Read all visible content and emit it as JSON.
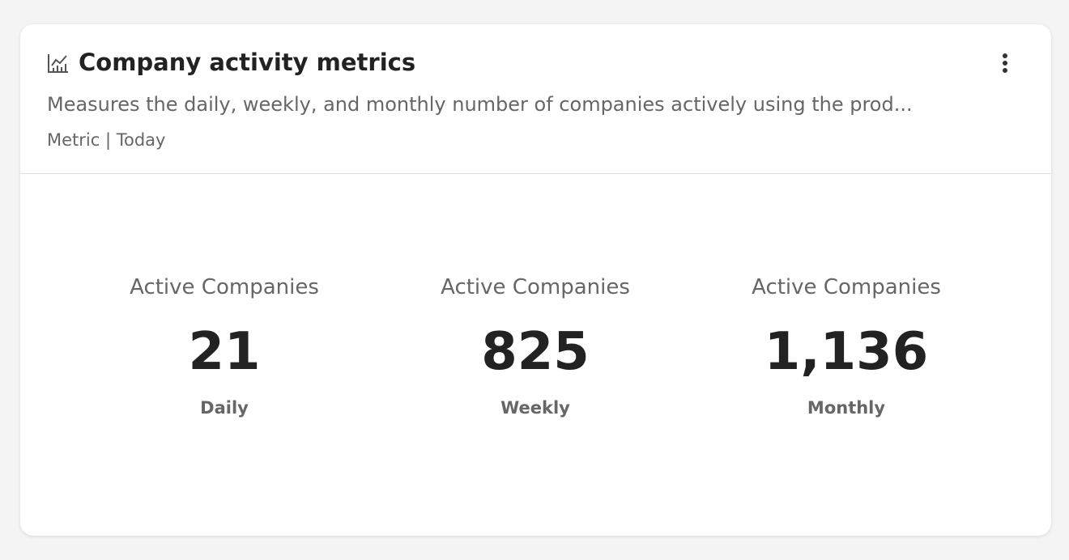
{
  "header": {
    "title": "Company activity metrics",
    "description": "Measures the daily, weekly, and monthly number of companies actively using the prod...",
    "meta": "Metric | Today"
  },
  "metrics": [
    {
      "label": "Active Companies",
      "value": "21",
      "period": "Daily"
    },
    {
      "label": "Active Companies",
      "value": "825",
      "period": "Weekly"
    },
    {
      "label": "Active Companies",
      "value": "1,136",
      "period": "Monthly"
    }
  ]
}
